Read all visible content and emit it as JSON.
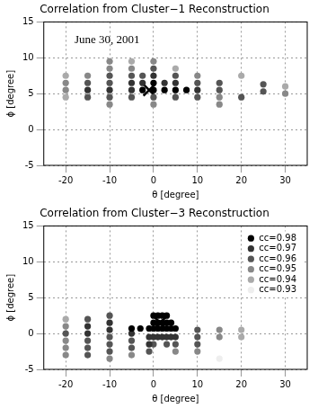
{
  "chart_data": [
    {
      "type": "scatter",
      "title": "Correlation from Cluster−1 Reconstruction",
      "x_label": "θ [degree]",
      "y_label": "ϕ [degree]",
      "xlim": [
        -25,
        35
      ],
      "xticks": [
        -20,
        -10,
        0,
        10,
        20,
        30
      ],
      "ylim": [
        -5,
        15
      ],
      "yticks": [
        -5,
        0,
        5,
        10,
        15
      ],
      "grid": true,
      "annotations": [
        {
          "text": "June 30, 2001",
          "x": -18,
          "y": 12.5
        }
      ],
      "series": [
        {
          "name": "cc=0.98",
          "color": "#000000",
          "marker": "circle",
          "values": [
            [
              -2.5,
              5.5
            ],
            [
              0,
              5.5
            ],
            [
              0,
              6.5
            ],
            [
              2.5,
              5.5
            ],
            [
              5,
              5.5
            ],
            [
              7.5,
              5.5
            ]
          ]
        },
        {
          "name": "cc=0.97",
          "color": "#333333",
          "marker": "circle",
          "values": [
            [
              -15,
              5.5
            ],
            [
              -10,
              5.5
            ],
            [
              -5,
              5.5
            ],
            [
              -5,
              6.5
            ],
            [
              -2.5,
              6.5
            ],
            [
              0,
              7.5
            ],
            [
              2.5,
              6.5
            ],
            [
              5,
              6.5
            ],
            [
              10,
              5.5
            ]
          ]
        },
        {
          "name": "cc=0.96",
          "color": "#555555",
          "marker": "circle",
          "values": [
            [
              -15,
              4.5
            ],
            [
              -15,
              6.5
            ],
            [
              -10,
              4.5
            ],
            [
              -10,
              6.5
            ],
            [
              -10,
              7.5
            ],
            [
              -5,
              4.5
            ],
            [
              -5,
              7.5
            ],
            [
              -2.5,
              7.5
            ],
            [
              0,
              4.5
            ],
            [
              0,
              8.5
            ],
            [
              5,
              4.5
            ],
            [
              5,
              7.5
            ],
            [
              10,
              4.5
            ],
            [
              10,
              6.5
            ],
            [
              15,
              5.5
            ],
            [
              15,
              6.5
            ],
            [
              20,
              4.5
            ],
            [
              25,
              5.3
            ],
            [
              25,
              6.3
            ]
          ]
        },
        {
          "name": "cc=0.95",
          "color": "#888888",
          "marker": "circle",
          "values": [
            [
              -20,
              5.5
            ],
            [
              -20,
              6.5
            ],
            [
              -15,
              7.5
            ],
            [
              -10,
              3.5
            ],
            [
              -10,
              8.5
            ],
            [
              -10,
              9.5
            ],
            [
              -5,
              8.5
            ],
            [
              0,
              3.5
            ],
            [
              0,
              9.5
            ],
            [
              10,
              7.5
            ],
            [
              15,
              3.5
            ],
            [
              15,
              4.5
            ],
            [
              30,
              5
            ]
          ]
        },
        {
          "name": "cc=0.94",
          "color": "#aaaaaa",
          "marker": "circle",
          "values": [
            [
              -20,
              4.5
            ],
            [
              -20,
              7.5
            ],
            [
              -5,
              9.5
            ],
            [
              5,
              8.5
            ],
            [
              20,
              7.5
            ],
            [
              30,
              6
            ]
          ]
        },
        {
          "name": "cc=0.93",
          "color": "#eeeeee",
          "marker": "circle",
          "values": []
        },
        {
          "color": "#000000",
          "marker": "x",
          "values": [
            [
              -1,
              5.5
            ]
          ]
        }
      ]
    },
    {
      "type": "scatter",
      "title": "Correlation from Cluster−3 Reconstruction",
      "x_label": "θ [degree]",
      "y_label": "ϕ [degree]",
      "xlim": [
        -25,
        35
      ],
      "xticks": [
        -20,
        -10,
        0,
        10,
        20,
        30
      ],
      "ylim": [
        -5,
        15
      ],
      "yticks": [
        -5,
        0,
        5,
        10,
        15
      ],
      "grid": true,
      "legend": "upper right",
      "series": [
        {
          "name": "cc=0.98",
          "color": "#000000",
          "marker": "circle",
          "values": [
            [
              -5,
              0.7
            ],
            [
              -3,
              0.7
            ],
            [
              -1,
              0.7
            ],
            [
              0,
              0.7
            ],
            [
              0,
              1.5
            ],
            [
              0,
              2.5
            ],
            [
              1,
              0.7
            ],
            [
              1,
              1.5
            ],
            [
              1,
              2.5
            ],
            [
              2,
              0.7
            ],
            [
              2,
              1.5
            ],
            [
              2,
              2.5
            ],
            [
              3,
              0.7
            ],
            [
              3,
              1.5
            ],
            [
              3,
              2.5
            ],
            [
              4,
              0.7
            ],
            [
              4,
              1.5
            ],
            [
              5,
              0.7
            ]
          ]
        },
        {
          "name": "cc=0.97",
          "color": "#333333",
          "marker": "circle",
          "values": [
            [
              -15,
              0
            ],
            [
              -15,
              1
            ],
            [
              -10,
              0.5
            ],
            [
              -10,
              1.5
            ],
            [
              -5,
              0
            ],
            [
              -1,
              -0.5
            ],
            [
              -1,
              -1.5
            ],
            [
              0,
              -0.5
            ],
            [
              1,
              -0.5
            ],
            [
              2,
              -0.5
            ],
            [
              3,
              -0.5
            ],
            [
              4,
              -0.5
            ],
            [
              5,
              -0.5
            ]
          ]
        },
        {
          "name": "cc=0.96",
          "color": "#555555",
          "marker": "circle",
          "values": [
            [
              -20,
              0
            ],
            [
              -15,
              -3
            ],
            [
              -15,
              -2
            ],
            [
              -15,
              -1
            ],
            [
              -15,
              2
            ],
            [
              -10,
              -2.5
            ],
            [
              -10,
              -1.5
            ],
            [
              -10,
              -0.5
            ],
            [
              -10,
              2.5
            ],
            [
              -5,
              -2
            ],
            [
              -5,
              -1
            ],
            [
              -1,
              -2.5
            ],
            [
              0,
              -1.5
            ],
            [
              3,
              -1.5
            ],
            [
              5,
              -1.5
            ],
            [
              10,
              0.5
            ],
            [
              10,
              -0.5
            ],
            [
              10,
              -1.5
            ]
          ]
        },
        {
          "name": "cc=0.95",
          "color": "#888888",
          "marker": "circle",
          "values": [
            [
              -20,
              -3
            ],
            [
              -20,
              -2
            ],
            [
              -20,
              -1
            ],
            [
              -20,
              1
            ],
            [
              -10,
              -3.5
            ],
            [
              -5,
              -3
            ],
            [
              5,
              -2.5
            ],
            [
              10,
              -2.5
            ],
            [
              15,
              0.5
            ],
            [
              15,
              -0.5
            ]
          ]
        },
        {
          "name": "cc=0.94",
          "color": "#aaaaaa",
          "marker": "circle",
          "values": [
            [
              -20,
              2
            ],
            [
              20,
              0.5
            ],
            [
              20,
              -0.5
            ]
          ]
        },
        {
          "name": "cc=0.93",
          "color": "#eeeeee",
          "marker": "circle",
          "values": [
            [
              15,
              -3.5
            ]
          ]
        },
        {
          "color": "#000000",
          "marker": "x",
          "values": [
            [
              1.5,
              1.5
            ]
          ]
        }
      ]
    }
  ]
}
